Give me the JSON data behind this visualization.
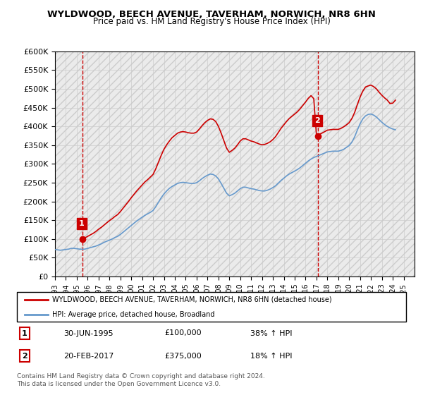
{
  "title": "WYLDWOOD, BEECH AVENUE, TAVERHAM, NORWICH, NR8 6HN",
  "subtitle": "Price paid vs. HM Land Registry's House Price Index (HPI)",
  "background_color": "#ffffff",
  "grid_color": "#cccccc",
  "hatch_color": "#dddddd",
  "plot_bg": "#f0f0f0",
  "ylim": [
    0,
    600000
  ],
  "yticks": [
    0,
    50000,
    100000,
    150000,
    200000,
    250000,
    300000,
    350000,
    400000,
    450000,
    500000,
    550000,
    600000
  ],
  "xlim_start": 1993,
  "xlim_end": 2026,
  "xticks": [
    1993,
    1994,
    1995,
    1996,
    1997,
    1998,
    1999,
    2000,
    2001,
    2002,
    2003,
    2004,
    2005,
    2006,
    2007,
    2008,
    2009,
    2010,
    2011,
    2012,
    2013,
    2014,
    2015,
    2016,
    2017,
    2018,
    2019,
    2020,
    2021,
    2022,
    2023,
    2024,
    2025
  ],
  "sale1_x": 1995.5,
  "sale1_y": 100000,
  "sale1_label": "1",
  "sale2_x": 2017.12,
  "sale2_y": 375000,
  "sale2_label": "2",
  "red_line_color": "#cc0000",
  "blue_line_color": "#6699cc",
  "vline_color": "#cc0000",
  "legend_line1": "WYLDWOOD, BEECH AVENUE, TAVERHAM, NORWICH, NR8 6HN (detached house)",
  "legend_line2": "HPI: Average price, detached house, Broadland",
  "annotation1_box": "1",
  "annotation1_date": "30-JUN-1995",
  "annotation1_price": "£100,000",
  "annotation1_hpi": "38% ↑ HPI",
  "annotation2_box": "2",
  "annotation2_date": "20-FEB-2017",
  "annotation2_price": "£375,000",
  "annotation2_hpi": "18% ↑ HPI",
  "footer": "Contains HM Land Registry data © Crown copyright and database right 2024.\nThis data is licensed under the Open Government Licence v3.0.",
  "hpi_data_x": [
    1993.0,
    1993.25,
    1993.5,
    1993.75,
    1994.0,
    1994.25,
    1994.5,
    1994.75,
    1995.0,
    1995.25,
    1995.5,
    1995.75,
    1996.0,
    1996.25,
    1996.5,
    1996.75,
    1997.0,
    1997.25,
    1997.5,
    1997.75,
    1998.0,
    1998.25,
    1998.5,
    1998.75,
    1999.0,
    1999.25,
    1999.5,
    1999.75,
    2000.0,
    2000.25,
    2000.5,
    2000.75,
    2001.0,
    2001.25,
    2001.5,
    2001.75,
    2002.0,
    2002.25,
    2002.5,
    2002.75,
    2003.0,
    2003.25,
    2003.5,
    2003.75,
    2004.0,
    2004.25,
    2004.5,
    2004.75,
    2005.0,
    2005.25,
    2005.5,
    2005.75,
    2006.0,
    2006.25,
    2006.5,
    2006.75,
    2007.0,
    2007.25,
    2007.5,
    2007.75,
    2008.0,
    2008.25,
    2008.5,
    2008.75,
    2009.0,
    2009.25,
    2009.5,
    2009.75,
    2010.0,
    2010.25,
    2010.5,
    2010.75,
    2011.0,
    2011.25,
    2011.5,
    2011.75,
    2012.0,
    2012.25,
    2012.5,
    2012.75,
    2013.0,
    2013.25,
    2013.5,
    2013.75,
    2014.0,
    2014.25,
    2014.5,
    2014.75,
    2015.0,
    2015.25,
    2015.5,
    2015.75,
    2016.0,
    2016.25,
    2016.5,
    2016.75,
    2017.0,
    2017.25,
    2017.5,
    2017.75,
    2018.0,
    2018.25,
    2018.5,
    2018.75,
    2019.0,
    2019.25,
    2019.5,
    2019.75,
    2020.0,
    2020.25,
    2020.5,
    2020.75,
    2021.0,
    2021.25,
    2021.5,
    2021.75,
    2022.0,
    2022.25,
    2022.5,
    2022.75,
    2023.0,
    2023.25,
    2023.5,
    2023.75,
    2024.0,
    2024.25
  ],
  "hpi_data_y": [
    72000,
    71000,
    70000,
    71000,
    72000,
    73000,
    75000,
    75000,
    74000,
    73000,
    72500,
    73000,
    75000,
    77000,
    79000,
    81000,
    84000,
    87000,
    91000,
    94000,
    97000,
    100000,
    104000,
    107000,
    112000,
    118000,
    124000,
    130000,
    136000,
    142000,
    148000,
    153000,
    158000,
    163000,
    167000,
    171000,
    176000,
    186000,
    198000,
    210000,
    220000,
    228000,
    235000,
    240000,
    244000,
    248000,
    250000,
    251000,
    250000,
    249000,
    248000,
    248000,
    250000,
    255000,
    261000,
    266000,
    270000,
    273000,
    272000,
    268000,
    260000,
    248000,
    235000,
    222000,
    215000,
    218000,
    222000,
    228000,
    234000,
    238000,
    238000,
    236000,
    234000,
    233000,
    231000,
    229000,
    228000,
    228000,
    230000,
    233000,
    237000,
    242000,
    249000,
    256000,
    262000,
    268000,
    273000,
    277000,
    281000,
    285000,
    290000,
    296000,
    302000,
    308000,
    313000,
    317000,
    320000,
    323000,
    326000,
    329000,
    332000,
    333000,
    334000,
    334000,
    334000,
    336000,
    339000,
    344000,
    349000,
    358000,
    372000,
    390000,
    407000,
    420000,
    428000,
    432000,
    433000,
    430000,
    425000,
    418000,
    411000,
    405000,
    400000,
    396000,
    393000,
    391000
  ],
  "red_data_x": [
    1993.0,
    1993.25,
    1993.5,
    1993.75,
    1994.0,
    1994.25,
    1994.5,
    1994.75,
    1995.0,
    1995.25,
    1995.5,
    1995.75,
    1996.0,
    1996.25,
    1996.5,
    1996.75,
    1997.0,
    1997.25,
    1997.5,
    1997.75,
    1998.0,
    1998.25,
    1998.5,
    1998.75,
    1999.0,
    1999.25,
    1999.5,
    1999.75,
    2000.0,
    2000.25,
    2000.5,
    2000.75,
    2001.0,
    2001.25,
    2001.5,
    2001.75,
    2002.0,
    2002.25,
    2002.5,
    2002.75,
    2003.0,
    2003.25,
    2003.5,
    2003.75,
    2004.0,
    2004.25,
    2004.5,
    2004.75,
    2005.0,
    2005.25,
    2005.5,
    2005.75,
    2006.0,
    2006.25,
    2006.5,
    2006.75,
    2007.0,
    2007.25,
    2007.5,
    2007.75,
    2008.0,
    2008.25,
    2008.5,
    2008.75,
    2009.0,
    2009.25,
    2009.5,
    2009.75,
    2010.0,
    2010.25,
    2010.5,
    2010.75,
    2011.0,
    2011.25,
    2011.5,
    2011.75,
    2012.0,
    2012.25,
    2012.5,
    2012.75,
    2013.0,
    2013.25,
    2013.5,
    2013.75,
    2014.0,
    2014.25,
    2014.5,
    2014.75,
    2015.0,
    2015.25,
    2015.5,
    2015.75,
    2016.0,
    2016.25,
    2016.5,
    2016.75,
    2017.0,
    2017.25,
    2017.5,
    2017.75,
    2018.0,
    2018.25,
    2018.5,
    2018.75,
    2019.0,
    2019.25,
    2019.5,
    2019.75,
    2020.0,
    2020.25,
    2020.5,
    2020.75,
    2021.0,
    2021.25,
    2021.5,
    2021.75,
    2022.0,
    2022.25,
    2022.5,
    2022.75,
    2023.0,
    2023.25,
    2023.5,
    2023.75,
    2024.0,
    2024.25
  ],
  "red_data_y": [
    null,
    null,
    null,
    null,
    null,
    null,
    null,
    null,
    null,
    null,
    100000,
    103000,
    107000,
    111000,
    115000,
    120000,
    126000,
    131000,
    137000,
    143000,
    149000,
    154000,
    160000,
    165000,
    173000,
    182000,
    191000,
    200000,
    210000,
    219000,
    228000,
    236000,
    244000,
    252000,
    258000,
    265000,
    272000,
    287000,
    305000,
    323000,
    339000,
    351000,
    361000,
    370000,
    376000,
    382000,
    385000,
    386000,
    385000,
    383000,
    382000,
    382000,
    385000,
    393000,
    402000,
    410000,
    416000,
    420000,
    419000,
    413000,
    400000,
    382000,
    362000,
    342000,
    331000,
    336000,
    342000,
    351000,
    361000,
    367000,
    367000,
    364000,
    361000,
    359000,
    356000,
    353000,
    351000,
    352000,
    355000,
    359000,
    365000,
    373000,
    384000,
    395000,
    404000,
    413000,
    421000,
    427000,
    433000,
    439000,
    447000,
    456000,
    465000,
    475000,
    482000,
    474000,
    375000,
    379000,
    382000,
    386000,
    390000,
    391000,
    392000,
    392000,
    392000,
    395000,
    399000,
    404000,
    410000,
    421000,
    437000,
    458000,
    478000,
    494000,
    505000,
    508000,
    510000,
    506000,
    500000,
    491000,
    483000,
    476000,
    470000,
    461000,
    462000,
    470000
  ],
  "sale1_vline_x": 1995.5,
  "sale2_vline_x": 2017.12
}
